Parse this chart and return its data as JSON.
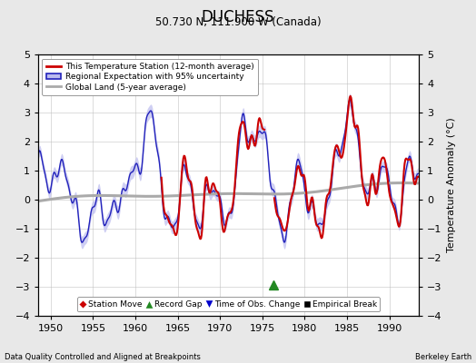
{
  "title": "DUCHESS",
  "subtitle": "50.730 N, 111.900 W (Canada)",
  "xlabel_left": "Data Quality Controlled and Aligned at Breakpoints",
  "xlabel_right": "Berkeley Earth",
  "ylabel": "Temperature Anomaly (°C)",
  "xlim": [
    1948.5,
    1993.5
  ],
  "ylim": [
    -4.0,
    5.0
  ],
  "yticks": [
    -4,
    -3,
    -2,
    -1,
    0,
    1,
    2,
    3,
    4,
    5
  ],
  "xticks": [
    1950,
    1955,
    1960,
    1965,
    1970,
    1975,
    1980,
    1985,
    1990
  ],
  "background_color": "#e8e8e8",
  "plot_bg_color": "#ffffff",
  "regional_color": "#2222bb",
  "regional_fill_color": "#bbbbee",
  "station_color": "#cc0000",
  "global_color": "#aaaaaa",
  "legend_items": [
    {
      "label": "This Temperature Station (12-month average)",
      "color": "#cc0000",
      "lw": 2.0
    },
    {
      "label": "Regional Expectation with 95% uncertainty",
      "color": "#2222bb",
      "lw": 1.5
    },
    {
      "label": "Global Land (5-year average)",
      "color": "#aaaaaa",
      "lw": 2.0
    }
  ],
  "marker_items": [
    {
      "label": "Station Move",
      "color": "#cc0000",
      "marker": "D"
    },
    {
      "label": "Record Gap",
      "color": "#228822",
      "marker": "^"
    },
    {
      "label": "Time of Obs. Change",
      "color": "#0000cc",
      "marker": "v"
    },
    {
      "label": "Empirical Break",
      "color": "#000000",
      "marker": "s"
    }
  ],
  "record_gap_x": 1976.3,
  "record_gap_y": -2.95,
  "station_start": 1963.0
}
